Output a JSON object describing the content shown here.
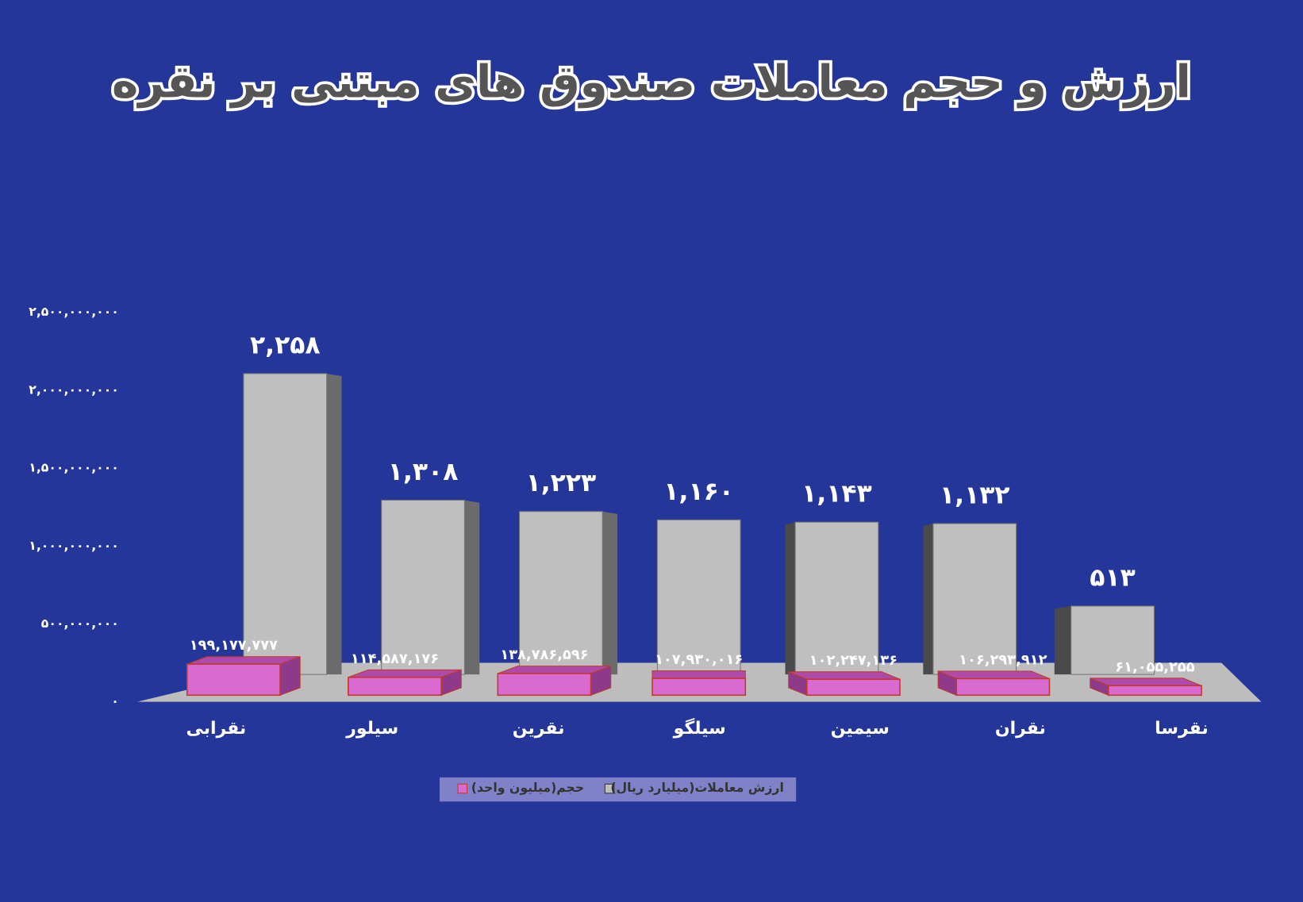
{
  "chart_data": {
    "type": "bar3d",
    "title": "ارزش و حجم معاملات صندوق های مبتنی بر نقره",
    "categories": [
      "نقرابی",
      "سیلور",
      "نقرین",
      "سیلگو",
      "سیمین",
      "نقران",
      "نقرسا"
    ],
    "series": [
      {
        "name": "ارزش معاملات(میلیارد ریال)",
        "color": "#bfbfbf",
        "values": [
          2258000000,
          1308000000,
          1223000000,
          1160000000,
          1143000000,
          1132000000,
          513000000
        ],
        "value_labels": [
          "۲,۲۵۸",
          "۱,۳۰۸",
          "۱,۲۲۳",
          "۱,۱۶۰",
          "۱,۱۴۳",
          "۱,۱۳۲",
          "۵۱۳"
        ]
      },
      {
        "name": "حجم(میلیون واحد)",
        "color": "#d96bd0",
        "values": [
          199177777,
          114587176,
          138786596,
          107930016,
          102247136,
          106293912,
          61055255
        ],
        "value_labels": [
          "۱۹۹,۱۷۷,۷۷۷",
          "۱۱۴,۵۸۷,۱۷۶",
          "۱۳۸,۷۸۶,۵۹۶",
          "۱۰۷,۹۳۰,۰۱۶",
          "۱۰۲,۲۴۷,۱۳۶",
          "۱۰۶,۲۹۳,۹۱۲",
          "۶۱,۰۵۵,۲۵۵"
        ]
      }
    ],
    "ylim": [
      0,
      2500000000
    ],
    "yticks": [
      {
        "value": 0,
        "label": "۰"
      },
      {
        "value": 500000000,
        "label": "۵۰۰,۰۰۰,۰۰۰"
      },
      {
        "value": 1000000000,
        "label": "۱,۰۰۰,۰۰۰,۰۰۰"
      },
      {
        "value": 1500000000,
        "label": "۱,۵۰۰,۰۰۰,۰۰۰"
      },
      {
        "value": 2000000000,
        "label": "۲,۰۰۰,۰۰۰,۰۰۰"
      },
      {
        "value": 2500000000,
        "label": "۲,۵۰۰,۰۰۰,۰۰۰"
      }
    ],
    "grid": false,
    "legend": "bottom"
  }
}
